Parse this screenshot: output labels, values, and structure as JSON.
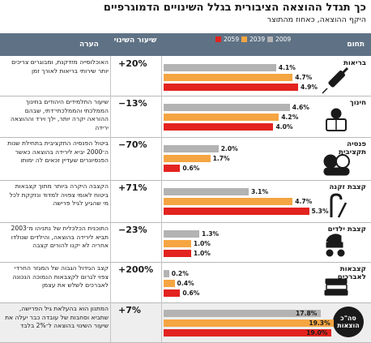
{
  "header": {
    "title": "כך תגדל ההוצאה הציבורית בגלל השינויים הדמוגרפיים",
    "subtitle": "היקף ההוצאה, כאחוז מהתוצר"
  },
  "columns": {
    "domain": "תחום",
    "change": "שיעור השינוי",
    "note": "הערה"
  },
  "colors": {
    "y2009": "#b3b3b3",
    "y2039": "#f5a542",
    "y2059": "#e3231f",
    "header_bg": "#5f7285"
  },
  "chart_data": {
    "type": "bar",
    "orientation": "horizontal",
    "title": "כך תגדל ההוצאה הציבורית בגלל השינויים הדמוגרפיים",
    "subtitle": "היקף ההוצאה, כאחוז מהתוצר",
    "legend": [
      "2009",
      "2039",
      "2059"
    ],
    "legend_placement": "top",
    "xlim": [
      0,
      20
    ],
    "categories": [
      "בריאות",
      "חינוך",
      "פנסיה תקציבית",
      "קצבת זקנה",
      "קצבת ילדים",
      "קצבאות לאברכים",
      "סה\"כ הוצאות"
    ],
    "series": [
      {
        "name": "2009",
        "values": [
          4.1,
          4.6,
          2.0,
          3.1,
          1.3,
          0.2,
          17.8
        ],
        "labels": [
          "4.1%",
          "4.6%",
          "2.0%",
          "3.1%",
          "1.3%",
          "0.2%",
          "17.8%"
        ]
      },
      {
        "name": "2039",
        "values": [
          4.7,
          4.2,
          1.7,
          4.7,
          1.0,
          0.4,
          19.3
        ],
        "labels": [
          "4.7%",
          "4.2%",
          "1.7%",
          "4.7%",
          "1.0%",
          "0.4%",
          "19.3%"
        ]
      },
      {
        "name": "2059",
        "values": [
          4.9,
          4.0,
          0.6,
          5.3,
          1.0,
          0.6,
          19.0
        ],
        "labels": [
          "4.9%",
          "4.0%",
          "0.6%",
          "5.3%",
          "1.0%",
          "0.6%",
          "19.0%"
        ]
      }
    ],
    "changes": [
      "+20%",
      "−13%",
      "−70%",
      "+71%",
      "−23%",
      "+200%",
      "+7%"
    ],
    "notes": [
      "האוכלוסייה מזדקנת, ומבוגרים צריכים יותר שירותי בריאות לאורך זמן",
      "שיעור התלמידים היהודים בחינוך הממלכתי והממלכתי־דתי, שבהם ההוראה יקרה יותר, ילך וירד וההוצאה ירידה",
      "ביטול הפנסיה התקציבית בתחילת שנות ה־2000 יביא לירידה בהוצאה כאשר הפנסיונרים שעדיין זכאים לה ימותו",
      "הקצבה היקרה ביותר מתוך קצבאות ביטוח לאומי צפויה למדוד ונזקקת לכל מי שהגיע לגיל פרישה",
      "התוכנית הכלכלית של נתניהו מ־2003 תביא לירידה בהוצאה, והילדים שנולדו אחריה לא יקנו להורים קצבה",
      "קצב הגידול הגבוה של המגזר החרדי צפוי לגרום לקצבאות הנמוכה הנכונה לאברכים לשלש את עצמן",
      "המתנון הוא בהעלאת גיל הפרישה, שתביא וסחבות של עובדה כבר יעלה את שיעור השינוי בהוצאה ל־2% בלבד"
    ]
  }
}
